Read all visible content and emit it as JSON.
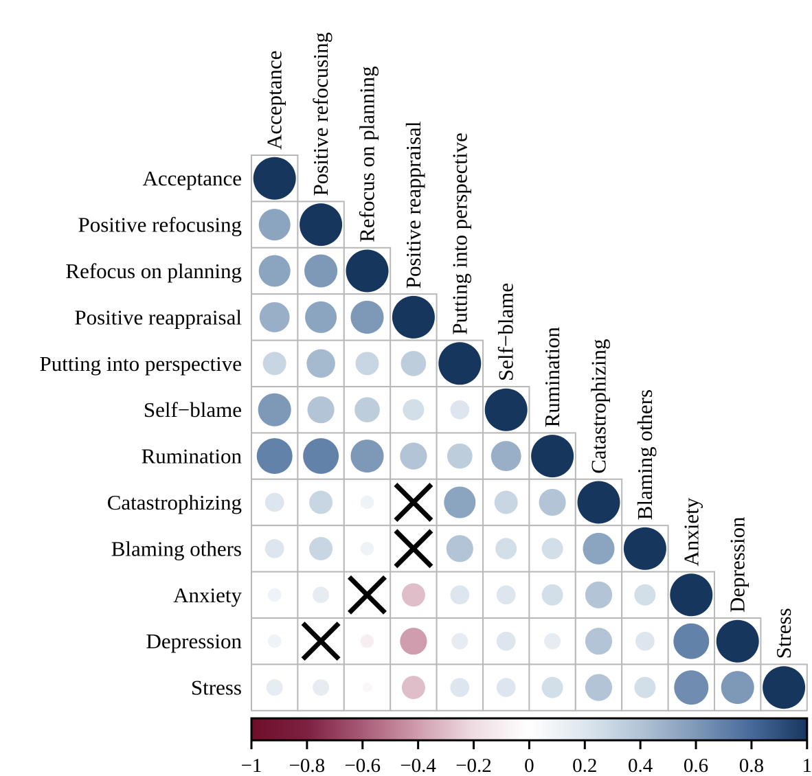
{
  "chart_data": {
    "type": "heatmap",
    "subtype": "correlation-matrix-lower-triangle-circles",
    "title": "",
    "encoding": "circle area proportional to |r|; circle colour encodes r from -1 (dark red) through white (0) to +1 (dark navy); black x marks non-significant correlations",
    "variables": [
      "Acceptance",
      "Positive refocusing",
      "Refocus on planning",
      "Positive reappraisal",
      "Putting into perspective",
      "Self−blame",
      "Rumination",
      "Catastrophizing",
      "Blaming others",
      "Anxiety",
      "Depression",
      "Stress"
    ],
    "matrix_lower_triangle": [
      [
        1
      ],
      [
        0.55,
        1
      ],
      [
        0.55,
        0.6,
        1
      ],
      [
        0.5,
        0.55,
        0.6,
        1
      ],
      [
        0.3,
        0.45,
        0.3,
        0.35,
        1
      ],
      [
        0.6,
        0.4,
        0.35,
        0.25,
        0.2,
        1
      ],
      [
        0.7,
        0.7,
        0.6,
        0.4,
        0.35,
        0.5,
        1
      ],
      [
        0.2,
        0.3,
        0.1,
        0,
        0.55,
        0.3,
        0.4,
        1
      ],
      [
        0.2,
        0.3,
        0.1,
        0,
        0.4,
        0.25,
        0.25,
        0.55,
        1
      ],
      [
        0.1,
        0.15,
        0,
        -0.3,
        0.2,
        0.2,
        0.25,
        0.4,
        0.25,
        1
      ],
      [
        0.1,
        0,
        -0.1,
        -0.4,
        0.15,
        0.2,
        0.15,
        0.4,
        0.2,
        0.7,
        1
      ],
      [
        0.15,
        0.15,
        -0.05,
        -0.3,
        0.2,
        0.2,
        0.25,
        0.4,
        0.25,
        0.65,
        0.6,
        1
      ]
    ],
    "non_significant": [
      {
        "row": "Catastrophizing",
        "col": "Positive reappraisal",
        "marker": "x"
      },
      {
        "row": "Blaming others",
        "col": "Positive reappraisal",
        "marker": "x"
      },
      {
        "row": "Anxiety",
        "col": "Refocus on planning",
        "marker": "x"
      },
      {
        "row": "Depression",
        "col": "Positive refocusing",
        "marker": "x"
      }
    ],
    "colorbar": {
      "position": "bottom",
      "orientation": "horizontal",
      "min": -1,
      "max": 1,
      "ticks": [
        -1,
        -0.8,
        -0.6,
        -0.4,
        -0.2,
        0,
        0.2,
        0.4,
        0.6,
        0.8,
        1
      ],
      "tick_labels": [
        "−1",
        "−0.8",
        "−0.6",
        "−0.4",
        "−0.2",
        "0",
        "0.2",
        "0.4",
        "0.6",
        "0.8",
        "1"
      ]
    },
    "color_scale": {
      "stops": [
        {
          "at": -1,
          "color": "#6e0e2a"
        },
        {
          "at": -0.8,
          "color": "#7d2041"
        },
        {
          "at": -0.6,
          "color": "#a85b76"
        },
        {
          "at": -0.4,
          "color": "#d09dae"
        },
        {
          "at": -0.2,
          "color": "#eedde3"
        },
        {
          "at": 0,
          "color": "#ffffff"
        },
        {
          "at": 0.2,
          "color": "#dde6ee"
        },
        {
          "at": 0.4,
          "color": "#b2c4d6"
        },
        {
          "at": 0.6,
          "color": "#7e99b8"
        },
        {
          "at": 0.8,
          "color": "#476a9b"
        },
        {
          "at": 1,
          "color": "#17365e"
        }
      ]
    },
    "marker_color": "#000000",
    "grid_color": "#b8b8b8",
    "background": "#ffffff"
  }
}
